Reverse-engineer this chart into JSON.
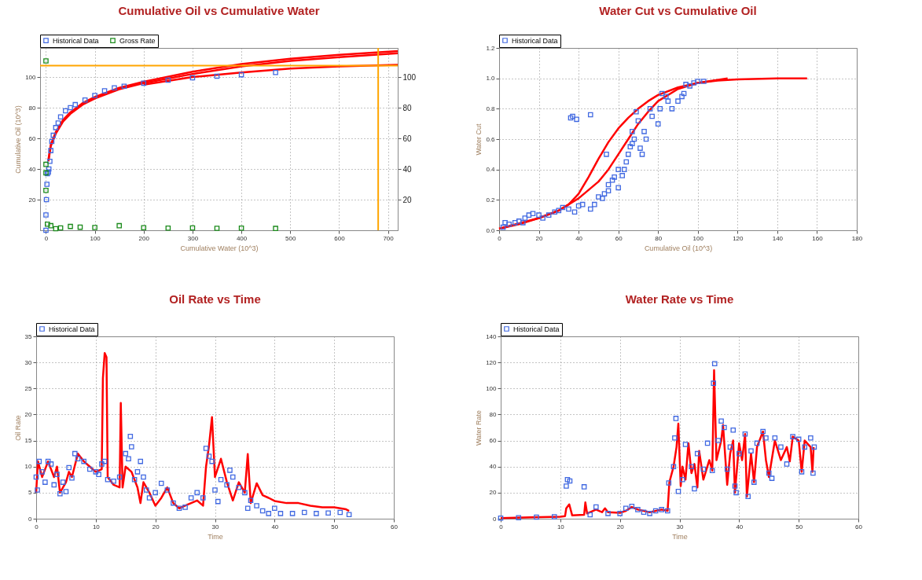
{
  "chart_data": [
    {
      "type": "scatter",
      "title": "Cumulative Oil vs Cumulative Water",
      "xlabel": "Cumulative Water (10^3)",
      "ylabel": "Cumulative Oil (10^3)",
      "xlim": [
        -12,
        720
      ],
      "xticks": [
        0,
        100,
        200,
        300,
        400,
        500,
        600,
        700
      ],
      "ylim": [
        0,
        119
      ],
      "yticks": [
        20,
        40,
        60,
        80,
        100
      ],
      "y2lim": [
        0,
        119
      ],
      "y2ticks": [
        20,
        40,
        60,
        80,
        100
      ],
      "grid": true,
      "legend": "top left",
      "marker": "square",
      "line_style": "solid",
      "ref_lines": [
        {
          "axis": "y",
          "value": 107.5,
          "color": "#ffa500"
        },
        {
          "axis": "x",
          "value": 680,
          "color": "#ffa500"
        }
      ],
      "series": [
        {
          "type": "line",
          "marker": "none",
          "color": "#ff0000",
          "x": [
            5,
            10,
            20,
            35,
            50,
            75,
            100,
            150,
            200,
            300,
            400,
            500,
            600,
            720
          ],
          "values": [
            45,
            55,
            63,
            71,
            76,
            82,
            86,
            92,
            96,
            102,
            107,
            110.5,
            113,
            115.5
          ]
        },
        {
          "type": "line",
          "marker": "none",
          "color": "#ff0000",
          "x": [
            5,
            10,
            20,
            35,
            50,
            75,
            100,
            150,
            200,
            300,
            400,
            500,
            600,
            720
          ],
          "values": [
            46,
            56,
            64,
            72,
            77,
            83,
            87,
            93,
            97,
            103.5,
            108.5,
            112,
            114.5,
            117
          ]
        },
        {
          "type": "line",
          "marker": "none",
          "color": "#ff0000",
          "x": [
            200,
            300,
            400,
            500,
            600,
            720
          ],
          "values": [
            95,
            100,
            103,
            105.5,
            107,
            108
          ]
        },
        {
          "name": "Historical Data",
          "color": "#4169e1",
          "x": [
            0,
            0,
            1,
            2,
            3,
            5,
            6,
            8,
            10,
            12,
            15,
            20,
            25,
            30,
            40,
            50,
            60,
            80,
            100,
            120,
            140,
            160,
            200,
            250,
            300,
            350,
            400,
            470
          ],
          "values": [
            0,
            10,
            20,
            30,
            37,
            38,
            40,
            45,
            52,
            58,
            62,
            67,
            70,
            74,
            78,
            80,
            82,
            85,
            88,
            91,
            93,
            94,
            96,
            98,
            99.5,
            100.5,
            101.5,
            103
          ]
        },
        {
          "name": "Gross Rate",
          "color": "#1a8a1a",
          "x": [
            0,
            0,
            0,
            0,
            3,
            10,
            20,
            30,
            50,
            70,
            100,
            150,
            200,
            250,
            300,
            350,
            400,
            470
          ],
          "values": [
            110.5,
            43,
            37.5,
            26,
            4,
            3,
            1,
            1.5,
            2.5,
            2,
            1.8,
            3,
            1.7,
            1.4,
            1.5,
            1.3,
            1.4,
            1.2
          ]
        }
      ]
    },
    {
      "type": "scatter",
      "title": "Water Cut vs Cumulative Oil",
      "xlabel": "Cumulative Oil (10^3)",
      "ylabel": "Water Cut",
      "xlim": [
        0,
        180
      ],
      "xticks": [
        0,
        20,
        40,
        60,
        80,
        100,
        120,
        140,
        160,
        180
      ],
      "ylim": [
        0,
        1.2
      ],
      "yticks": [
        {
          "value": 0,
          "label": "0.0"
        },
        0.2,
        0.4,
        0.6,
        0.8,
        {
          "value": 1,
          "label": "1.0"
        },
        1.2
      ],
      "grid": true,
      "legend": "top left",
      "marker": "square",
      "line_style": "solid",
      "series": [
        {
          "type": "line",
          "marker": "none",
          "color": "#ff0000",
          "x": [
            0,
            10,
            20,
            30,
            35,
            40,
            45,
            50,
            55,
            60,
            65,
            70,
            75,
            80,
            90,
            100,
            110,
            120,
            140,
            155
          ],
          "values": [
            0.01,
            0.04,
            0.08,
            0.13,
            0.17,
            0.24,
            0.35,
            0.47,
            0.58,
            0.67,
            0.74,
            0.8,
            0.85,
            0.89,
            0.94,
            0.97,
            0.985,
            0.993,
            0.999,
            1.0
          ]
        },
        {
          "type": "line",
          "marker": "none",
          "color": "#ff0000",
          "x": [
            0,
            20,
            30,
            40,
            50,
            55,
            60,
            65,
            70,
            75,
            80,
            90,
            100,
            115
          ],
          "values": [
            0.01,
            0.08,
            0.13,
            0.21,
            0.32,
            0.4,
            0.5,
            0.6,
            0.7,
            0.78,
            0.85,
            0.93,
            0.97,
            1.0
          ]
        },
        {
          "name": "Historical Data",
          "color": "#4169e1",
          "x": [
            2,
            3,
            5,
            8,
            10,
            12,
            13,
            15,
            17,
            20,
            22,
            25,
            28,
            30,
            32,
            35,
            36,
            37,
            38,
            39,
            40,
            42,
            46,
            46,
            48,
            50,
            52,
            54,
            53,
            55,
            55,
            57,
            58,
            60,
            60,
            62,
            63,
            64,
            65,
            66,
            67,
            67,
            68,
            69,
            70,
            71,
            72,
            73,
            74,
            76,
            77,
            80,
            81,
            82,
            84,
            85,
            87,
            90,
            92,
            93,
            94,
            96,
            98,
            100,
            103
          ],
          "values": [
            0.02,
            0.05,
            0.04,
            0.05,
            0.06,
            0.05,
            0.08,
            0.1,
            0.11,
            0.1,
            0.08,
            0.1,
            0.12,
            0.13,
            0.15,
            0.14,
            0.74,
            0.75,
            0.12,
            0.73,
            0.16,
            0.17,
            0.76,
            0.14,
            0.17,
            0.22,
            0.21,
            0.5,
            0.24,
            0.26,
            0.3,
            0.33,
            0.35,
            0.28,
            0.4,
            0.36,
            0.4,
            0.45,
            0.5,
            0.55,
            0.57,
            0.65,
            0.6,
            0.78,
            0.72,
            0.54,
            0.5,
            0.65,
            0.6,
            0.8,
            0.75,
            0.7,
            0.8,
            0.9,
            0.88,
            0.85,
            0.8,
            0.85,
            0.88,
            0.9,
            0.96,
            0.95,
            0.97,
            0.98,
            0.98
          ]
        }
      ]
    },
    {
      "type": "scatter",
      "title": "Oil Rate vs Time",
      "xlabel": "Time",
      "ylabel": "Oil Rate",
      "xlim": [
        0,
        60
      ],
      "xticks": [
        0,
        10,
        20,
        30,
        40,
        50,
        60
      ],
      "ylim": [
        0,
        35
      ],
      "yticks": [
        0,
        5,
        10,
        15,
        20,
        25,
        30,
        35
      ],
      "grid": true,
      "legend": "top left",
      "marker": "square",
      "line_style": "solid",
      "series": [
        {
          "type": "line",
          "marker": "none",
          "color": "#ff0000",
          "x": [
            0,
            0.3,
            1,
            2,
            3,
            3.5,
            4,
            5,
            5.5,
            6,
            7,
            8,
            9,
            10,
            11,
            11.2,
            11.5,
            11.8,
            12,
            13,
            14,
            14.2,
            14.5,
            15,
            16,
            17,
            17.5,
            18,
            19,
            20,
            21,
            22,
            23,
            24,
            25,
            26,
            27,
            28,
            28.5,
            29,
            29.5,
            30,
            31,
            32,
            33,
            34,
            35,
            35.5,
            36,
            37,
            38,
            39,
            40,
            42,
            44,
            46,
            48,
            50,
            52,
            52.5
          ],
          "values": [
            5,
            11,
            8,
            11,
            8,
            10,
            5,
            7,
            9,
            8,
            12.5,
            11,
            10,
            9,
            9.5,
            27,
            31.8,
            31,
            8,
            6.5,
            6,
            22.2,
            6,
            10,
            9,
            6,
            3,
            7,
            5,
            2.5,
            4,
            6,
            3,
            2,
            2.5,
            3,
            3.5,
            2.5,
            10,
            14,
            19.5,
            8,
            11.5,
            7,
            3.5,
            7,
            5,
            12.4,
            3,
            6.8,
            4.5,
            4,
            3.4,
            3,
            3,
            2.5,
            2.2,
            2.2,
            1.8,
            1.5
          ]
        },
        {
          "name": "Historical Data",
          "color": "#4169e1",
          "x": [
            0,
            0.2,
            0.5,
            1,
            1.5,
            2,
            2.5,
            3,
            3.5,
            4,
            4.5,
            5,
            5.5,
            6,
            6.5,
            7,
            8,
            9,
            10,
            10.5,
            11,
            11.5,
            12,
            13,
            14,
            15,
            15.5,
            15.8,
            16,
            16.5,
            17,
            17.5,
            18,
            18.5,
            19,
            20,
            21,
            22,
            23,
            24,
            25,
            26,
            27,
            28,
            28.5,
            29,
            29.5,
            30,
            30.5,
            31,
            32,
            32.5,
            33,
            34,
            35,
            35.5,
            36,
            37,
            38,
            39,
            40,
            41,
            43,
            45,
            47,
            49,
            51,
            52.5
          ],
          "values": [
            8,
            5.5,
            11,
            9,
            7,
            11,
            10.5,
            6.5,
            8.5,
            4.8,
            7,
            5.2,
            9.8,
            7.8,
            12.5,
            11.5,
            11,
            9.5,
            9,
            8.5,
            10.5,
            11,
            7.5,
            7.2,
            8,
            12.5,
            11.5,
            15.8,
            13.8,
            7.5,
            9,
            11,
            8,
            5.5,
            4,
            5,
            6.8,
            5.5,
            3,
            2,
            2.2,
            4,
            5,
            4,
            13.5,
            12,
            11,
            5.5,
            3.3,
            7.5,
            6.5,
            9.3,
            8,
            6,
            5,
            2,
            3.5,
            2.5,
            1.5,
            1,
            2,
            1,
            1,
            1.2,
            1,
            1.1,
            1.2,
            0.8
          ]
        }
      ]
    },
    {
      "type": "scatter",
      "title": "Water Rate vs Time",
      "xlabel": "Time",
      "ylabel": "Water Rate",
      "xlim": [
        0,
        60
      ],
      "xticks": [
        0,
        10,
        20,
        30,
        40,
        50,
        60
      ],
      "ylim": [
        0,
        140
      ],
      "yticks": [
        0,
        20,
        40,
        60,
        80,
        100,
        120,
        140
      ],
      "grid": true,
      "legend": "top left",
      "marker": "square",
      "line_style": "solid",
      "series": [
        {
          "type": "line",
          "marker": "none",
          "color": "#ff0000",
          "x": [
            0,
            5,
            10,
            10.8,
            11,
            11.5,
            12,
            14,
            14.2,
            14.5,
            16,
            17,
            17.5,
            18,
            20,
            21,
            22,
            23,
            25,
            27,
            28,
            28.3,
            29,
            29.5,
            29.8,
            30.2,
            30.5,
            31,
            31.5,
            32,
            32.5,
            33,
            33.3,
            34,
            35,
            35.5,
            35.8,
            36.2,
            37,
            37.3,
            38,
            38.5,
            39,
            39.3,
            40,
            40.5,
            41,
            41.3,
            42,
            42.5,
            43,
            44,
            44.5,
            45,
            46,
            47,
            48,
            48.5,
            49,
            50,
            50.5,
            51,
            52,
            52.3,
            52.5
          ],
          "values": [
            0.5,
            1,
            1.5,
            2,
            8,
            11,
            2.5,
            3,
            12.5,
            4,
            7,
            5,
            8,
            5,
            4.5,
            6,
            9,
            7,
            5,
            7,
            6,
            28,
            40,
            55,
            73,
            25,
            40,
            30,
            58,
            35,
            42,
            24,
            52,
            30,
            45,
            37,
            114,
            45,
            60,
            72,
            26,
            50,
            60,
            20,
            58,
            45,
            65,
            17,
            50,
            28,
            55,
            67,
            45,
            32,
            60,
            45,
            55,
            44,
            63,
            60,
            36,
            60,
            55,
            36,
            55
          ]
        },
        {
          "name": "Historical Data",
          "color": "#4169e1",
          "x": [
            0,
            3,
            6,
            9,
            11,
            11.2,
            11.6,
            14,
            15,
            16,
            18,
            20,
            21,
            22,
            23,
            24,
            25,
            26,
            27,
            28,
            28.2,
            29,
            29.2,
            29.4,
            29.8,
            30.5,
            31,
            32,
            32.5,
            33,
            34,
            34.7,
            35.5,
            35.7,
            35.9,
            36.5,
            37,
            37.5,
            38,
            38.5,
            39,
            39.3,
            39.5,
            40,
            41,
            41.5,
            42,
            42.5,
            43,
            44,
            44.5,
            45,
            45.5,
            46,
            47,
            48,
            49,
            50,
            50.5,
            51,
            52,
            52.4,
            52.6
          ],
          "values": [
            0.5,
            0.8,
            1.2,
            1.5,
            25,
            30,
            29,
            24.5,
            3,
            9,
            4,
            4,
            8,
            9.5,
            7,
            5,
            4,
            6,
            7,
            6,
            27.5,
            40,
            62,
            77,
            21,
            30,
            57,
            40,
            23,
            50,
            38,
            58,
            37,
            104,
            119,
            60,
            75,
            70,
            38,
            55,
            68,
            25,
            20,
            50,
            65,
            17,
            52,
            28,
            58,
            67,
            62,
            35,
            31,
            62,
            55,
            42,
            63,
            61,
            36,
            55,
            62,
            35,
            55
          ]
        }
      ]
    }
  ]
}
